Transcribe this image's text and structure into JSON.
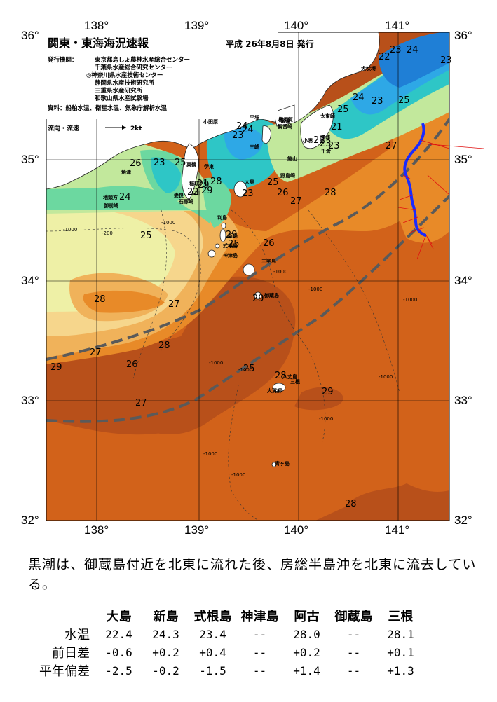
{
  "map": {
    "title": "関東・東海海況速報",
    "issue_date": "平成  26年8月8日  発行",
    "issuer_label": "発行機関：",
    "issuers": [
      "東京都島しょ農林水産総合センター",
      "千葉県水産総合研究センター",
      "◎神奈川県水産技術センター",
      "静岡県水産技術研究所",
      "三重県水産研究所",
      "和歌山県水産試験場"
    ],
    "sources": "資料：船舶水温、衛星水温、気象庁解析水温",
    "current_legend": "流向・流速",
    "current_scale": "2kt",
    "lon_labels_top": [
      "138°",
      "139°",
      "140°",
      "141°"
    ],
    "lon_labels_bottom": [
      "138°",
      "139°",
      "140°",
      "141°"
    ],
    "lat_labels_left": [
      "36°",
      "35°",
      "34°",
      "33°",
      "32°"
    ],
    "lat_labels_right": [
      "36°",
      "35°",
      "34°",
      "33°",
      "32°"
    ],
    "temperature_labels": [
      "22",
      "23",
      "24",
      "23",
      "25",
      "23",
      "24",
      "25",
      "23",
      "21",
      "22",
      "23",
      "27",
      "24",
      "23",
      "24",
      "25",
      "23",
      "26",
      "21",
      "22",
      "25",
      "23",
      "26",
      "25",
      "27",
      "28",
      "24",
      "25",
      "26",
      "28",
      "27",
      "27",
      "28",
      "26",
      "25",
      "28",
      "29",
      "27",
      "29",
      "28",
      "29",
      "29",
      "29",
      "28",
      "29"
    ],
    "depth_labels": [
      "-1000",
      "-200",
      "-1000",
      "-1000",
      "-1000",
      "-1000",
      "-1000",
      "-1000",
      "-1000",
      "-1000",
      "-1000",
      "-1000"
    ],
    "place_names": [
      "犬吠埼",
      "太東崎",
      "勝浦",
      "小湊",
      "野島崎",
      "館山",
      "千倉",
      "観音崎",
      "横須賀",
      "平塚",
      "小田原",
      "富津",
      "三崎",
      "真鶴",
      "伊東",
      "稲取",
      "下田",
      "石廊崎",
      "妻良",
      "焼津",
      "御前崎",
      "地頭方",
      "大島",
      "利島",
      "新島",
      "式根島",
      "神津島",
      "三宅島",
      "御蔵島",
      "八丈島",
      "三根",
      "大賀郷",
      "青ヶ島"
    ],
    "colors": {
      "t29plus": "#b8501a",
      "t28": "#d2621a",
      "t27": "#e88a28",
      "t26": "#f0b25a",
      "t25": "#f6d68c",
      "t24": "#eef0a6",
      "t23": "#c2e89c",
      "t22": "#6cd8a0",
      "t21": "#2ec6c6",
      "t20": "#2ea8e6",
      "land": "#ffffff",
      "kuroshio_axis": "#1a2aff",
      "current_arrows": "#e01010",
      "kuroshio_band": "#5a5a5a"
    }
  },
  "summary": "黒潮は、御蔵島付近を北東に流れた後、房総半島沖を北東に流去している。",
  "table": {
    "columns": [
      "大島",
      "新島",
      "式根島",
      "神津島",
      "阿古",
      "御蔵島",
      "三根"
    ],
    "rows": [
      {
        "label": "水温",
        "values": [
          "22.4",
          "24.3",
          "23.4",
          "--",
          "28.0",
          "--",
          "28.1"
        ]
      },
      {
        "label": "前日差",
        "values": [
          "-0.6",
          "+0.2",
          "+0.4",
          "--",
          "+0.2",
          "--",
          "+0.1"
        ]
      },
      {
        "label": "平年偏差",
        "values": [
          "-2.5",
          "-0.2",
          "-1.5",
          "--",
          "+1.4",
          "--",
          "+1.3"
        ]
      }
    ]
  }
}
